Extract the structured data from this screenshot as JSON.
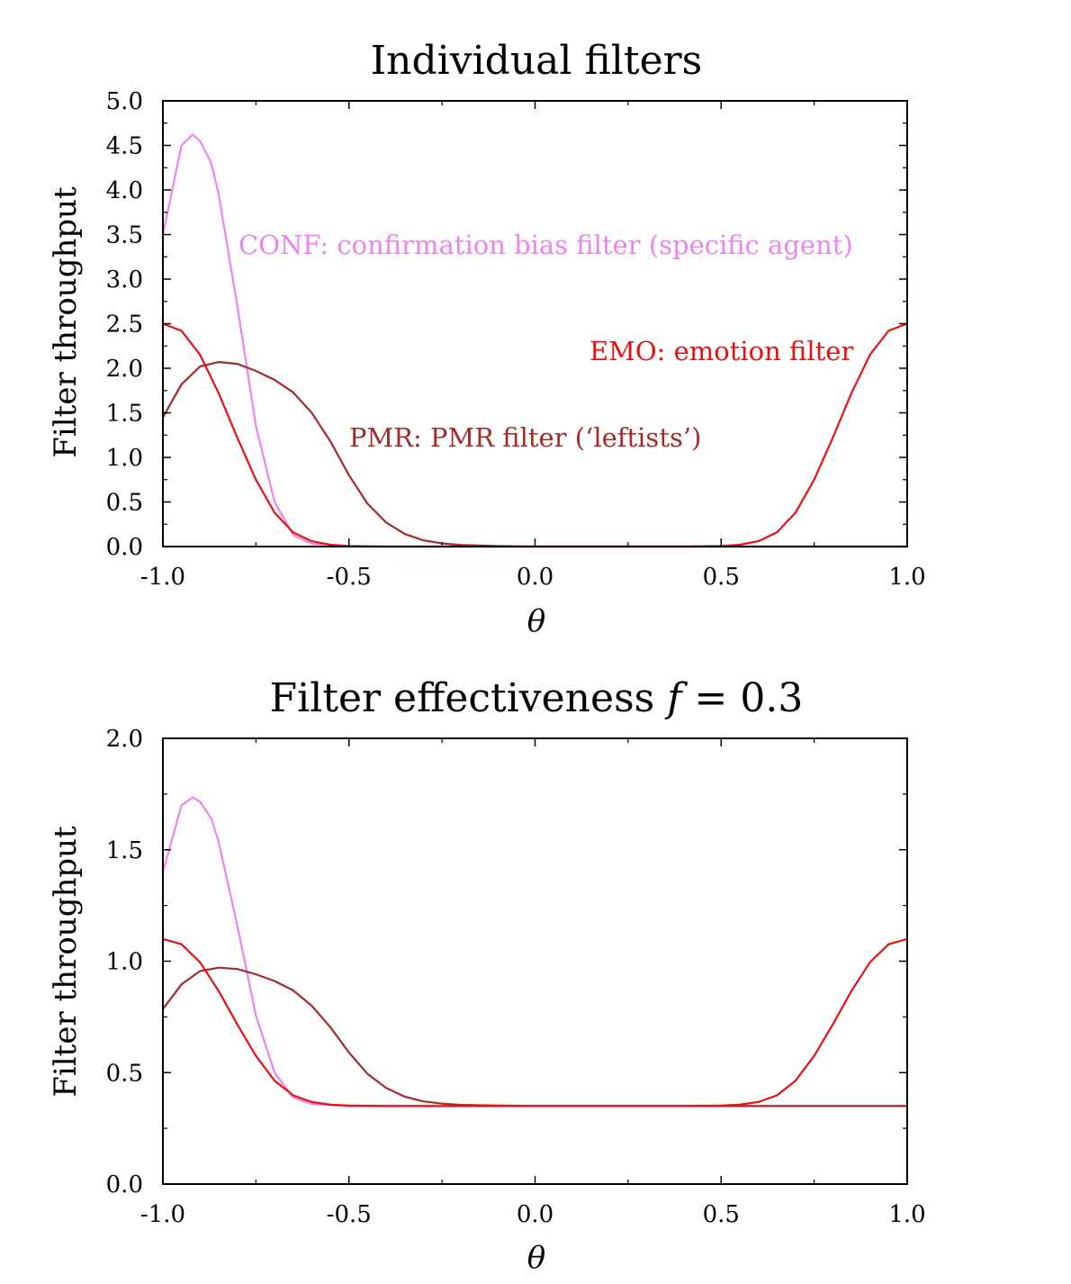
{
  "chart_data": [
    {
      "type": "line",
      "title": "Individual filters",
      "xlabel": "θ",
      "ylabel": "Filter throughput",
      "xlim": [
        -1.0,
        1.0
      ],
      "ylim": [
        0.0,
        5.0
      ],
      "xticks": [
        "-1.0",
        "-0.5",
        "0.0",
        "0.5",
        "1.0"
      ],
      "yticks": [
        "0.0",
        "0.5",
        "1.0",
        "1.5",
        "2.0",
        "2.5",
        "3.0",
        "3.5",
        "4.0",
        "4.5",
        "5.0"
      ],
      "series": [
        {
          "name": "CONF",
          "color": "#ee82ee",
          "x": [
            -1.0,
            -0.95,
            -0.92,
            -0.9,
            -0.87,
            -0.85,
            -0.8,
            -0.75,
            -0.7,
            -0.65,
            -0.6,
            -0.5,
            0.0,
            0.5,
            1.0
          ],
          "y": [
            3.5,
            4.5,
            4.62,
            4.55,
            4.3,
            3.95,
            2.7,
            1.35,
            0.5,
            0.13,
            0.03,
            0.0,
            0.0,
            0.0,
            0.0
          ]
        },
        {
          "name": "PMR",
          "color": "#a52a2a",
          "x": [
            -1.0,
            -0.95,
            -0.9,
            -0.85,
            -0.8,
            -0.75,
            -0.7,
            -0.65,
            -0.6,
            -0.55,
            -0.5,
            -0.45,
            -0.4,
            -0.35,
            -0.3,
            -0.25,
            -0.2,
            -0.1,
            0.0,
            0.5,
            1.0
          ],
          "y": [
            1.45,
            1.82,
            2.02,
            2.07,
            2.05,
            1.97,
            1.87,
            1.73,
            1.5,
            1.18,
            0.8,
            0.48,
            0.27,
            0.14,
            0.07,
            0.035,
            0.018,
            0.005,
            0.0,
            0.0,
            0.0
          ]
        },
        {
          "name": "EMO",
          "color": "#e81010",
          "x": [
            -1.0,
            -0.95,
            -0.9,
            -0.85,
            -0.8,
            -0.75,
            -0.7,
            -0.65,
            -0.6,
            -0.55,
            -0.5,
            -0.4,
            0.0,
            0.4,
            0.5,
            0.55,
            0.6,
            0.65,
            0.7,
            0.75,
            0.8,
            0.85,
            0.9,
            0.95,
            1.0
          ],
          "y": [
            2.5,
            2.42,
            2.15,
            1.72,
            1.22,
            0.75,
            0.38,
            0.16,
            0.06,
            0.02,
            0.005,
            0.0,
            0.0,
            0.0,
            0.005,
            0.02,
            0.06,
            0.16,
            0.38,
            0.75,
            1.22,
            1.72,
            2.15,
            2.42,
            2.5
          ]
        }
      ],
      "annotations": [
        {
          "text": "CONF: confirmation bias filter (specific agent)",
          "series": "CONF",
          "x": -0.8,
          "y": 3.35
        },
        {
          "text": "EMO: emotion filter",
          "series": "EMO",
          "x": 0.13,
          "y": 2.15
        },
        {
          "text": "PMR: PMR filter (‘leftists’)",
          "series": "PMR",
          "x": -0.51,
          "y": 1.18
        }
      ]
    },
    {
      "type": "line",
      "title": "Filter effectiveness f = 0.3",
      "title_main": "Filter effectiveness",
      "title_var": "f",
      "title_value": "= 0.3",
      "xlabel": "θ",
      "ylabel": "Filter throughput",
      "xlim": [
        -1.0,
        1.0
      ],
      "ylim": [
        0.0,
        2.0
      ],
      "xticks": [
        "-1.0",
        "-0.5",
        "0.0",
        "0.5",
        "1.0"
      ],
      "yticks": [
        "0.0",
        "0.5",
        "1.0",
        "1.5",
        "2.0"
      ],
      "series": [
        {
          "name": "CONF",
          "color": "#ee82ee",
          "x": [
            -1.0,
            -0.95,
            -0.92,
            -0.9,
            -0.87,
            -0.85,
            -0.8,
            -0.75,
            -0.7,
            -0.65,
            -0.6,
            -0.5,
            0.0,
            0.5,
            1.0
          ],
          "y": [
            1.4,
            1.7,
            1.735,
            1.715,
            1.64,
            1.535,
            1.16,
            0.755,
            0.5,
            0.389,
            0.359,
            0.35,
            0.35,
            0.35,
            0.35
          ]
        },
        {
          "name": "PMR",
          "color": "#a52a2a",
          "x": [
            -1.0,
            -0.95,
            -0.9,
            -0.85,
            -0.8,
            -0.75,
            -0.7,
            -0.65,
            -0.6,
            -0.55,
            -0.5,
            -0.45,
            -0.4,
            -0.35,
            -0.3,
            -0.25,
            -0.2,
            -0.1,
            0.0,
            0.5,
            1.0
          ],
          "y": [
            0.785,
            0.896,
            0.956,
            0.971,
            0.965,
            0.941,
            0.911,
            0.869,
            0.8,
            0.704,
            0.59,
            0.494,
            0.431,
            0.392,
            0.371,
            0.361,
            0.355,
            0.352,
            0.35,
            0.35,
            0.35
          ]
        },
        {
          "name": "EMO",
          "color": "#e81010",
          "x": [
            -1.0,
            -0.95,
            -0.9,
            -0.85,
            -0.8,
            -0.75,
            -0.7,
            -0.65,
            -0.6,
            -0.55,
            -0.5,
            -0.4,
            0.0,
            0.4,
            0.5,
            0.55,
            0.6,
            0.65,
            0.7,
            0.75,
            0.8,
            0.85,
            0.9,
            0.95,
            1.0
          ],
          "y": [
            1.1,
            1.076,
            0.995,
            0.866,
            0.716,
            0.575,
            0.464,
            0.398,
            0.368,
            0.356,
            0.352,
            0.35,
            0.35,
            0.35,
            0.352,
            0.356,
            0.368,
            0.398,
            0.464,
            0.575,
            0.716,
            0.866,
            0.995,
            1.076,
            1.1
          ]
        }
      ]
    }
  ]
}
